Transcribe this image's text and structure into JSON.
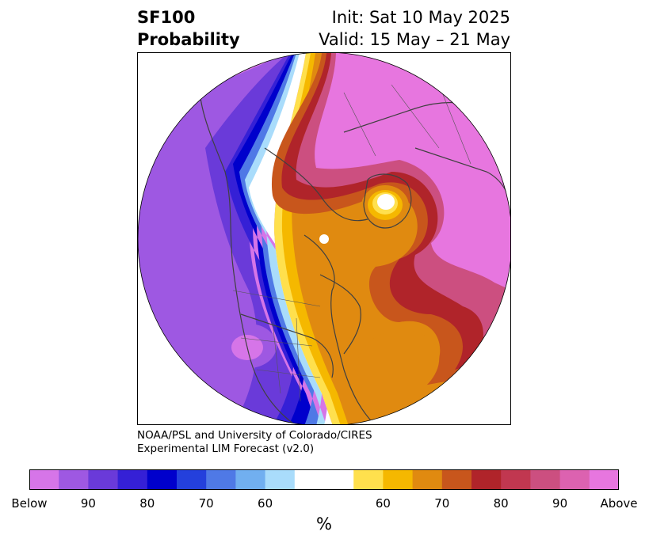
{
  "header": {
    "title_line1": "SF100",
    "title_line2": "Probability",
    "init_line": "Init: Sat 10 May 2025",
    "valid_line": "Valid: 15 May – 21 May"
  },
  "credit": {
    "line1": "NOAA/PSL and University of Colorado/CIRES",
    "line2": "Experimental LIM Forecast (v2.0)"
  },
  "colorbar": {
    "unit": "%",
    "colors": [
      "#d675e8",
      "#9e58e2",
      "#6a3ad9",
      "#3520d6",
      "#0000cc",
      "#2440dc",
      "#4f79e6",
      "#71aff0",
      "#a9dcfb",
      "#ffffff",
      "#ffffff",
      "#ffe04d",
      "#f5b800",
      "#e08a10",
      "#c8561c",
      "#b0242a",
      "#c13750",
      "#cc4f80",
      "#dc62b0",
      "#e776df"
    ],
    "labels": [
      "Below",
      "90",
      "80",
      "70",
      "60",
      "60",
      "70",
      "80",
      "90",
      "Above"
    ]
  },
  "map": {
    "colors": {
      "below_far": "#d675e8",
      "below_90": "#9e58e2",
      "below_80": "#6a3ad9",
      "below_70": "#3520d6",
      "below_60": "#0000cc",
      "below_mid": "#4f79e6",
      "below_near": "#a9dcfb",
      "neutral": "#ffffff",
      "above_near": "#ffe04d",
      "above_60": "#f5b800",
      "above_70": "#e08a10",
      "above_80": "#b0242a",
      "above_90": "#cc4f80",
      "above_far": "#e776df",
      "coast": "#404040"
    }
  }
}
